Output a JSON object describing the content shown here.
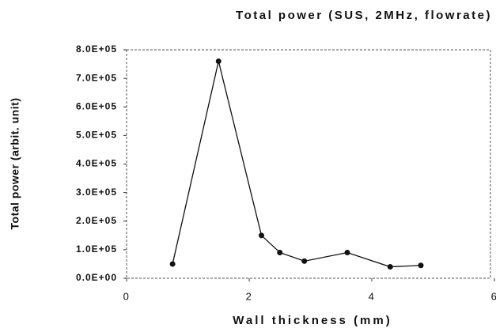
{
  "chart_data": {
    "type": "line",
    "title": "Total power (SUS, 2MHz, flowrate)",
    "xlabel": "Wall thickness (mm)",
    "ylabel": "Total power (arbit. unit)",
    "x": [
      0.75,
      1.5,
      2.2,
      2.5,
      2.9,
      3.6,
      4.3,
      4.8
    ],
    "series": [
      {
        "name": "Total power",
        "color": "#111111",
        "values": [
          50000,
          760000,
          150000,
          90000,
          60000,
          90000,
          40000,
          45000
        ]
      }
    ],
    "xlim": [
      0,
      6
    ],
    "xticks": [
      0,
      2,
      4,
      6
    ],
    "ylim": [
      0,
      800000
    ],
    "yticks": [
      {
        "value": 0,
        "label": "0.0E+00"
      },
      {
        "value": 100000,
        "label": "1.0E+05"
      },
      {
        "value": 200000,
        "label": "2.0E+05"
      },
      {
        "value": 300000,
        "label": "3.0E+05"
      },
      {
        "value": 400000,
        "label": "4.0E+05"
      },
      {
        "value": 500000,
        "label": "5.0E+05"
      },
      {
        "value": 600000,
        "label": "6.0E+05"
      },
      {
        "value": 700000,
        "label": "7.0E+05"
      },
      {
        "value": 800000,
        "label": "8.0E+05"
      }
    ]
  }
}
